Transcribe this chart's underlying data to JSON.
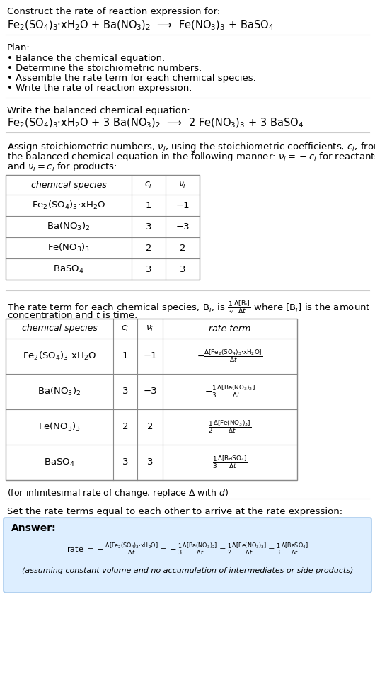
{
  "bg_color": "#ffffff",
  "answer_bg_color": "#ddeeff",
  "answer_border_color": "#aaccee",
  "sections": {
    "title": "Construct the rate of reaction expression for:",
    "rxn_unbal": "Fe$_2$(SO$_4$)$_3$·xH$_2$O + Ba(NO$_3$)$_2$  ⟶  Fe(NO$_3$)$_3$ + BaSO$_4$",
    "plan_header": "Plan:",
    "plan_items": [
      "• Balance the chemical equation.",
      "• Determine the stoichiometric numbers.",
      "• Assemble the rate term for each chemical species.",
      "• Write the rate of reaction expression."
    ],
    "balanced_header": "Write the balanced chemical equation:",
    "rxn_bal": "Fe$_2$(SO$_4$)$_3$·xH$_2$O + 3 Ba(NO$_3$)$_2$  ⟶  2 Fe(NO$_3$)$_3$ + 3 BaSO$_4$",
    "stoich_intro_lines": [
      "Assign stoichiometric numbers, $\\nu_i$, using the stoichiometric coefficients, $c_i$, from",
      "the balanced chemical equation in the following manner: $\\nu_i = -c_i$ for reactants",
      "and $\\nu_i = c_i$ for products:"
    ],
    "table1_col_headers": [
      "chemical species",
      "$c_i$",
      "$\\nu_i$"
    ],
    "table1_rows": [
      [
        "Fe$_2$(SO$_4$)$_3$·xH$_2$O",
        "1",
        "−1"
      ],
      [
        "Ba(NO$_3$)$_2$",
        "3",
        "−3"
      ],
      [
        "Fe(NO$_3$)$_3$",
        "2",
        "2"
      ],
      [
        "BaSO$_4$",
        "3",
        "3"
      ]
    ],
    "rate_intro_line1": "The rate term for each chemical species, B$_i$, is $\\frac{1}{\\nu_i}\\frac{\\Delta[\\mathrm{B}_i]}{\\Delta t}$ where [B$_i$] is the amount",
    "rate_intro_line2": "concentration and $t$ is time:",
    "table2_col_headers": [
      "chemical species",
      "$c_i$",
      "$\\nu_i$",
      "rate term"
    ],
    "table2_species": [
      "Fe$_2$(SO$_4$)$_3$·xH$_2$O",
      "Ba(NO$_3$)$_2$",
      "Fe(NO$_3$)$_3$",
      "BaSO$_4$"
    ],
    "table2_ci": [
      "1",
      "3",
      "2",
      "3"
    ],
    "table2_vi": [
      "−1",
      "−3",
      "2",
      "3"
    ],
    "table2_rate_terms": [
      "$-\\frac{\\Delta[\\mathrm{Fe_2(SO_4)_3{\\cdot}xH_2O}]}{\\Delta t}$",
      "$-\\frac{1}{3}\\frac{\\Delta[\\mathrm{Ba(NO_3)_2}]}{\\Delta t}$",
      "$\\frac{1}{2}\\frac{\\Delta[\\mathrm{Fe(NO_3)_3}]}{\\Delta t}$",
      "$\\frac{1}{3}\\frac{\\Delta[\\mathrm{BaSO_4}]}{\\Delta t}$"
    ],
    "infinitesimal_note": "(for infinitesimal rate of change, replace Δ with $d$)",
    "set_equal_text": "Set the rate terms equal to each other to arrive at the rate expression:",
    "answer_label": "Answer:",
    "answer_rate_expr": "rate $= -\\frac{\\Delta[\\mathrm{Fe_2(SO_4)_3{\\cdot}xH_2O}]}{\\Delta t} = -\\frac{1}{3}\\frac{\\Delta[\\mathrm{Ba(NO_3)_2}]}{\\Delta t} = \\frac{1}{2}\\frac{\\Delta[\\mathrm{Fe(NO_3)_3}]}{\\Delta t} = \\frac{1}{3}\\frac{\\Delta[\\mathrm{BaSO_4}]}{\\Delta t}$",
    "answer_note": "(assuming constant volume and no accumulation of intermediates or side products)"
  }
}
